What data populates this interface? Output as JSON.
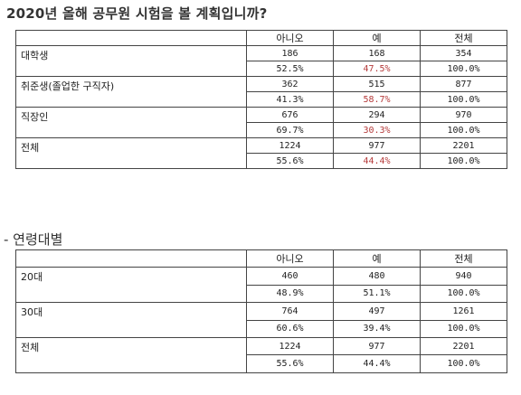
{
  "title": "2020년 올해 공무원 시험을 볼 계획입니까?",
  "table1": {
    "headers": [
      "아니오",
      "예",
      "전체"
    ],
    "rows": [
      {
        "label": "대학생",
        "counts": [
          "186",
          "168",
          "354"
        ],
        "pcts": [
          "52.5%",
          "47.5%",
          "100.0%"
        ]
      },
      {
        "label": "취준생(졸업한 구직자)",
        "counts": [
          "362",
          "515",
          "877"
        ],
        "pcts": [
          "41.3%",
          "58.7%",
          "100.0%"
        ]
      },
      {
        "label": "직장인",
        "counts": [
          "676",
          "294",
          "970"
        ],
        "pcts": [
          "69.7%",
          "30.3%",
          "100.0%"
        ]
      },
      {
        "label": "전체",
        "counts": [
          "1224",
          "977",
          "2201"
        ],
        "pcts": [
          "55.6%",
          "44.4%",
          "100.0%"
        ]
      }
    ]
  },
  "subtitle": "- 연령대별",
  "table2": {
    "headers": [
      "아니오",
      "예",
      "전체"
    ],
    "rows": [
      {
        "label": "20대",
        "counts": [
          "460",
          "480",
          "940"
        ],
        "pcts": [
          "48.9%",
          "51.1%",
          "100.0%"
        ]
      },
      {
        "label": "30대",
        "counts": [
          "764",
          "497",
          "1261"
        ],
        "pcts": [
          "60.6%",
          "39.4%",
          "100.0%"
        ]
      },
      {
        "label": "전체",
        "counts": [
          "1224",
          "977",
          "2201"
        ],
        "pcts": [
          "55.6%",
          "44.4%",
          "100.0%"
        ]
      }
    ]
  },
  "colors": {
    "highlight": "#b53b3b",
    "border": "#444444",
    "text": "#222222"
  }
}
